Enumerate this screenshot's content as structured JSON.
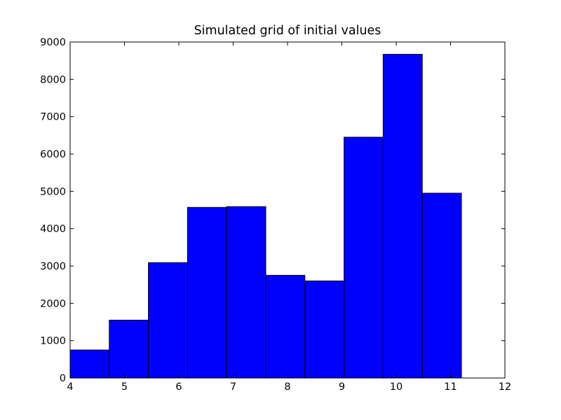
{
  "chart_data": {
    "type": "bar",
    "title": "Simulated grid of initial values",
    "xlabel": "",
    "ylabel": "",
    "bin_edges": [
      4.0,
      4.72,
      5.44,
      6.16,
      6.88,
      7.6,
      8.32,
      9.04,
      9.76,
      10.48,
      11.2
    ],
    "values": [
      750,
      1550,
      3090,
      4570,
      4590,
      2750,
      2600,
      6450,
      8670,
      4950
    ],
    "xlim": [
      4,
      12
    ],
    "ylim": [
      0,
      9000
    ],
    "xticks": [
      4,
      5,
      6,
      7,
      8,
      9,
      10,
      11,
      12
    ],
    "yticks": [
      0,
      1000,
      2000,
      3000,
      4000,
      5000,
      6000,
      7000,
      8000,
      9000
    ],
    "bar_color": "#0000ff",
    "edge_color": "#000000",
    "grid": false,
    "legend": "none"
  }
}
